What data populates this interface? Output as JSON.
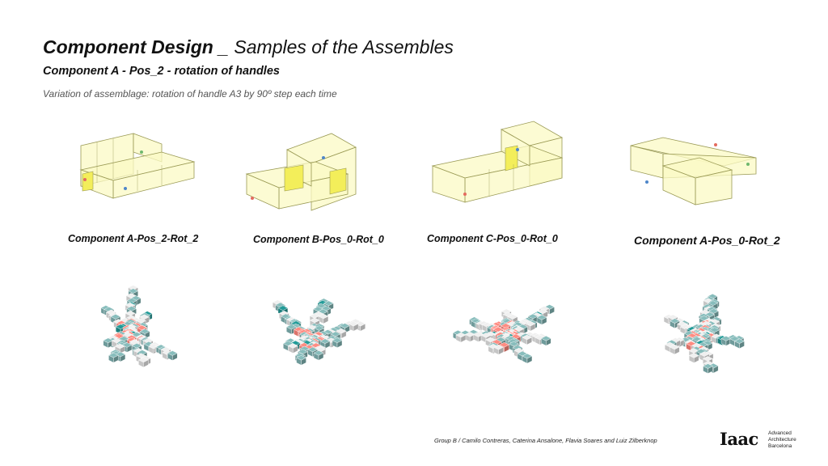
{
  "slide": {
    "title_bold": "Component Design",
    "title_sep": "_",
    "title_rest": "Samples of the Assembles",
    "subtitle": "Component A - Pos_2 - rotation of handles",
    "description": "Variation of assemblage: rotation of handle A3 by 90º step each time"
  },
  "components": [
    {
      "label": "Component A-Pos_2-Rot_2"
    },
    {
      "label": "Component B-Pos_0-Rot_0"
    },
    {
      "label": "Component C-Pos_0-Rot_0"
    },
    {
      "label": "Component A-Pos_0-Rot_2"
    }
  ],
  "footer": {
    "credits": "Group B / Camilo Contreras, Caterina Ansalone, Flavia Soares and Luiz Zilberknop",
    "logo_mark": "Iaac",
    "logo_line1": "Advanced",
    "logo_line2": "Architecture",
    "logo_line3": "Barcelona"
  },
  "colors": {
    "box_fill": "#fbf9c4",
    "box_stroke": "#9a9a55",
    "handle_fill": "#f3ee5a",
    "teal": "#79a9a8",
    "teal_dark": "#1e8a88",
    "grey": "#d6d6d6",
    "salmon": "#ef7d74"
  }
}
